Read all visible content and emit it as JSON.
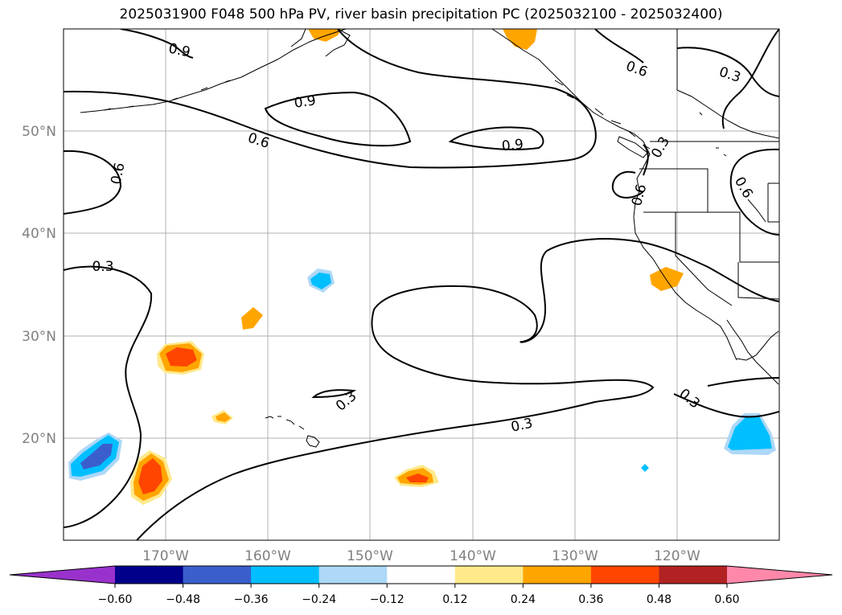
{
  "title": "2025031900 F048 500 hPa PV, river basin precipitation PC (2025032100 - 2025032400)",
  "map": {
    "lon_range": [
      -180,
      -110
    ],
    "lat_range": [
      10,
      60
    ],
    "lat_labels": [
      "50°N",
      "40°N",
      "30°N",
      "20°N"
    ],
    "lon_labels": [
      "170°W",
      "160°W",
      "150°W",
      "140°W",
      "130°W",
      "120°W"
    ],
    "contour_labels": [
      "0.9",
      "0.9",
      "0.9",
      "0.6",
      "0.6",
      "0.3",
      "0.6",
      "0.3",
      "0.6",
      "0.6",
      "0.3",
      "0.3",
      "0.3",
      "0.3"
    ],
    "gridlines": true
  },
  "colorbar": {
    "ticks": [
      "−0.60",
      "−0.48",
      "−0.36",
      "−0.24",
      "−0.12",
      "0.12",
      "0.24",
      "0.36",
      "0.48",
      "0.60"
    ],
    "colors": [
      "#9932cc",
      "#00008b",
      "#3a5fcd",
      "#00bfff",
      "#add8f7",
      "#ffffff",
      "#ffe98a",
      "#ffa500",
      "#ff4500",
      "#b22222",
      "#ff88aa"
    ]
  }
}
